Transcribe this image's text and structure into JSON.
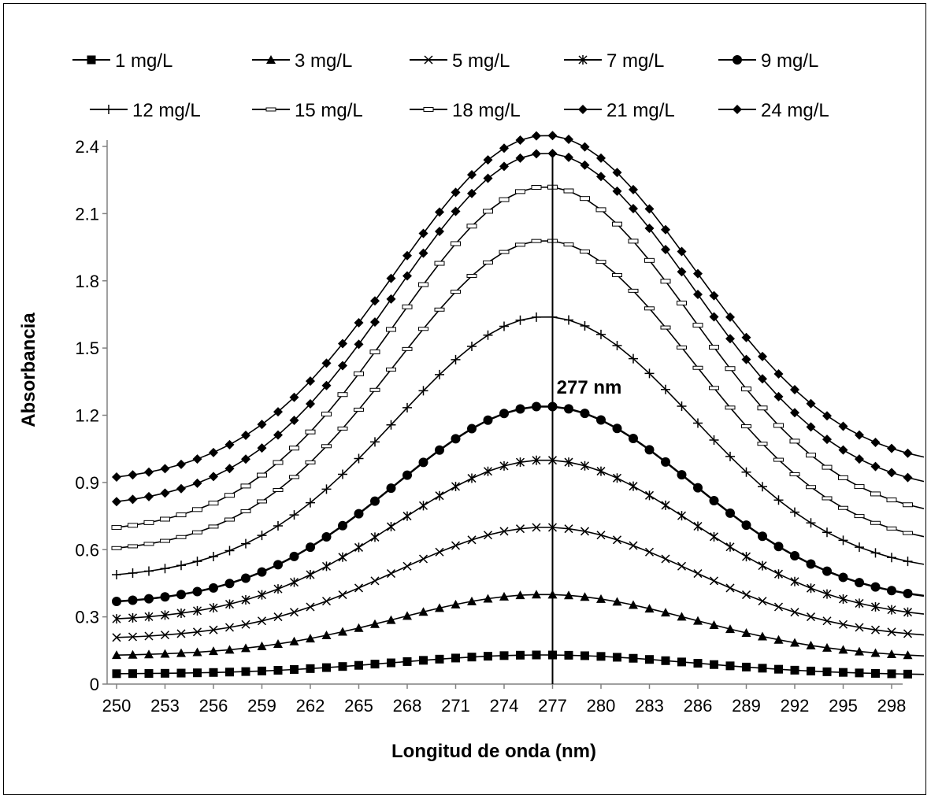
{
  "chart_data": {
    "type": "line",
    "xlabel": "Longitud de onda (nm)",
    "ylabel": "Absorbancia",
    "xlim": [
      250,
      300
    ],
    "ylim": [
      0,
      2.4
    ],
    "x_ticks": [
      250,
      253,
      256,
      259,
      262,
      265,
      268,
      271,
      274,
      277,
      280,
      283,
      286,
      289,
      292,
      295,
      298
    ],
    "y_ticks": [
      0,
      0.3,
      0.6,
      0.9,
      1.2,
      1.5,
      1.8,
      2.1,
      2.4
    ],
    "y_tick_labels": [
      "0",
      "0.3",
      "0.6",
      "0.9",
      "1.2",
      "1.5",
      "1.8",
      "2.1",
      "2.4"
    ],
    "grid": false,
    "legend_position": "top",
    "annotation": {
      "text": "277 nm",
      "x": 277
    },
    "series": [
      {
        "name": "1 mg/L",
        "marker": "square",
        "peak": 0.13,
        "base_left": 0.045,
        "base_right": 0.04
      },
      {
        "name": "3 mg/L",
        "marker": "triangle",
        "peak": 0.4,
        "base_left": 0.125,
        "base_right": 0.115
      },
      {
        "name": "5 mg/L",
        "marker": "x",
        "peak": 0.7,
        "base_left": 0.2,
        "base_right": 0.2
      },
      {
        "name": "7 mg/L",
        "marker": "star",
        "peak": 1.0,
        "base_left": 0.28,
        "base_right": 0.285
      },
      {
        "name": "9 mg/L",
        "marker": "circle",
        "peak": 1.24,
        "base_left": 0.355,
        "base_right": 0.36
      },
      {
        "name": "12 mg/L",
        "marker": "plus",
        "peak": 1.64,
        "base_left": 0.47,
        "base_right": 0.49
      },
      {
        "name": "15 mg/L",
        "marker": "dash",
        "peak": 1.98,
        "base_left": 0.585,
        "base_right": 0.605
      },
      {
        "name": "18 mg/L",
        "marker": "rect-open",
        "peak": 2.22,
        "base_left": 0.675,
        "base_right": 0.725
      },
      {
        "name": "21 mg/L",
        "marker": "diamond",
        "peak": 2.37,
        "base_left": 0.79,
        "base_right": 0.845
      },
      {
        "name": "24 mg/L",
        "marker": "diamond",
        "peak": 2.45,
        "base_left": 0.9,
        "base_right": 0.955
      }
    ]
  }
}
